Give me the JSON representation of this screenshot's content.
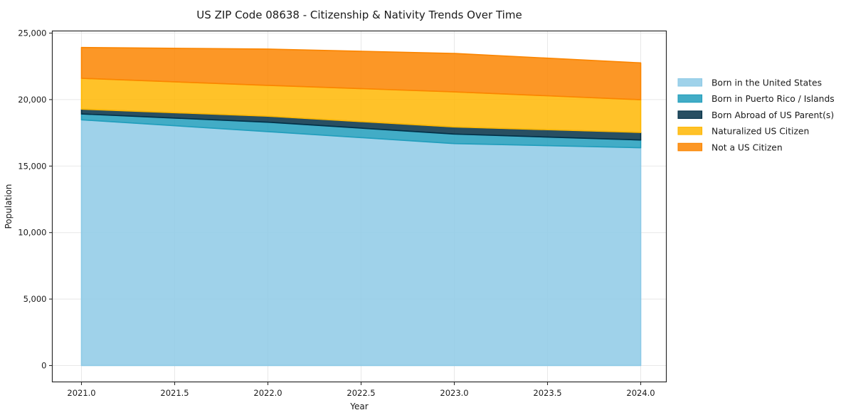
{
  "chart_data": {
    "type": "area",
    "stacked": true,
    "title": "US ZIP Code 08638 - Citizenship & Nativity Trends Over Time",
    "xlabel": "Year",
    "ylabel": "Population",
    "x": [
      2021,
      2022,
      2023,
      2024
    ],
    "series": [
      {
        "name": "Born in the United States",
        "color": "#8ecae6",
        "values": [
          18480,
          17590,
          16690,
          16380
        ]
      },
      {
        "name": "Born in Puerto Rico / Islands",
        "color": "#219ebc",
        "values": [
          440,
          710,
          715,
          580
        ]
      },
      {
        "name": "Born Abroad of US Parent(s)",
        "color": "#023047",
        "values": [
          360,
          450,
          535,
          570
        ]
      },
      {
        "name": "Naturalized US Citizen",
        "color": "#ffb703",
        "values": [
          2320,
          2320,
          2640,
          2460
        ]
      },
      {
        "name": "Not a US Citizen",
        "color": "#fb8500",
        "values": [
          2320,
          2730,
          2890,
          2770
        ]
      }
    ],
    "xticks": {
      "values": [
        2021.0,
        2021.5,
        2022.0,
        2022.5,
        2023.0,
        2023.5,
        2024.0
      ],
      "labels": [
        "2021.0",
        "2021.5",
        "2022.0",
        "2022.5",
        "2023.0",
        "2023.5",
        "2024.0"
      ]
    },
    "yticks": {
      "values": [
        0,
        5000,
        10000,
        15000,
        20000,
        25000
      ],
      "labels": [
        "0",
        "5,000",
        "10,000",
        "15,000",
        "20,000",
        "25,000"
      ]
    },
    "xlim": [
      2020.85,
      2024.15
    ],
    "ylim": [
      -1250,
      25150
    ],
    "grid": true,
    "fill_alpha": 0.85,
    "legend": {
      "position": "right-outside",
      "frame": false
    }
  },
  "colors": {
    "background": "#ffffff",
    "grid": "#e8e8e8",
    "spine": "#2b2b2b",
    "text": "#1a1a1a"
  }
}
